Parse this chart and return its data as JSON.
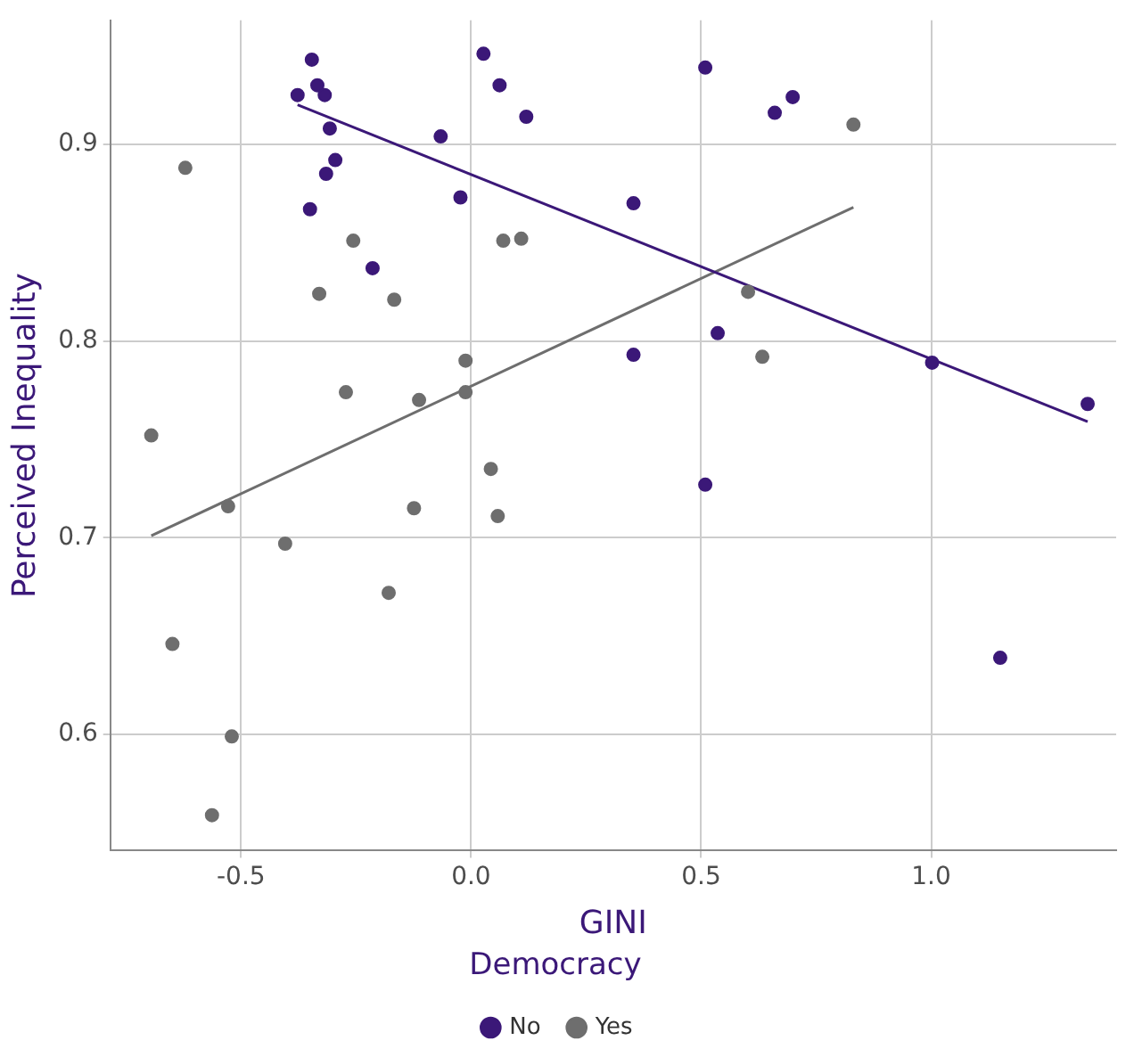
{
  "chart_data": {
    "type": "scatter",
    "xlabel": "GINI",
    "ylabel": "Perceived Inequality",
    "legend_title": "Democracy",
    "legend": "bottom",
    "grid": true,
    "marker": "circle",
    "xlim": [
      -0.784,
      1.402
    ],
    "ylim": [
      0.541,
      0.963
    ],
    "xticks": [
      {
        "value": -0.5,
        "label": "-0.5"
      },
      {
        "value": 0,
        "label": "0.0"
      },
      {
        "value": 0.5,
        "label": "0.5"
      },
      {
        "value": 1,
        "label": "1.0"
      }
    ],
    "yticks": [
      0.6,
      0.7,
      0.8,
      0.9
    ],
    "series": [
      {
        "name": "No",
        "color": "#3b1878",
        "x": [
          -0.377,
          -0.346,
          -0.334,
          -0.318,
          -0.307,
          -0.295,
          -0.315,
          -0.35,
          -0.214,
          -0.066,
          -0.023,
          0.027,
          0.062,
          0.12,
          0.353,
          0.353,
          0.509,
          0.509,
          0.536,
          0.66,
          0.699,
          1.002,
          1.15,
          1.34
        ],
        "values": [
          0.925,
          0.943,
          0.93,
          0.925,
          0.908,
          0.892,
          0.885,
          0.867,
          0.837,
          0.904,
          0.873,
          0.946,
          0.93,
          0.914,
          0.87,
          0.793,
          0.727,
          0.939,
          0.804,
          0.916,
          0.924,
          0.789,
          0.639,
          0.768
        ]
      },
      {
        "name": "Yes",
        "color": "#6e6e6e",
        "x": [
          -0.621,
          -0.695,
          -0.649,
          -0.528,
          -0.52,
          -0.563,
          -0.404,
          -0.33,
          -0.256,
          -0.272,
          -0.167,
          -0.179,
          -0.124,
          -0.113,
          -0.012,
          -0.012,
          0.043,
          0.058,
          0.07,
          0.109,
          0.602,
          0.633,
          0.831
        ],
        "values": [
          0.888,
          0.752,
          0.646,
          0.716,
          0.599,
          0.559,
          0.697,
          0.824,
          0.851,
          0.774,
          0.821,
          0.672,
          0.715,
          0.77,
          0.79,
          0.774,
          0.735,
          0.711,
          0.851,
          0.852,
          0.825,
          0.792,
          0.91
        ]
      },
      {
        "type": "line",
        "color": "#3b1878",
        "marker": "none",
        "x": [
          -0.377,
          1.34
        ],
        "values": [
          0.92,
          0.759
        ]
      },
      {
        "type": "line",
        "color": "#6e6e6e",
        "marker": "none",
        "x": [
          -0.695,
          0.831
        ],
        "values": [
          0.701,
          0.868
        ]
      }
    ]
  }
}
